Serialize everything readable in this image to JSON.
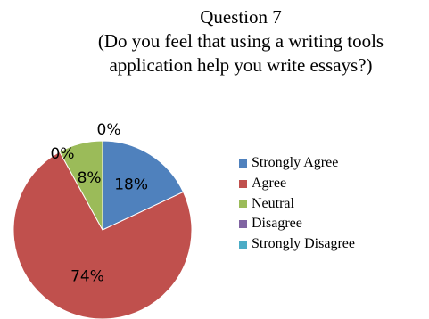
{
  "chart_data": {
    "type": "pie",
    "title_lines": [
      "Question 7",
      "(Do you feel that using a writing tools",
      "application help you write essays?)"
    ],
    "categories": [
      "Strongly Agree",
      "Agree",
      "Neutral",
      "Disagree",
      "Strongly Disagree"
    ],
    "values": [
      18,
      74,
      8,
      0,
      0
    ],
    "labels": [
      "18%",
      "74%",
      "8%",
      "0%",
      "0%"
    ],
    "colors": [
      "#4F81BD",
      "#C0504D",
      "#9BBB59",
      "#8064A2",
      "#4BACC6"
    ],
    "start_angle": "12 o'clock",
    "direction": "clockwise",
    "legend_position": "right"
  }
}
